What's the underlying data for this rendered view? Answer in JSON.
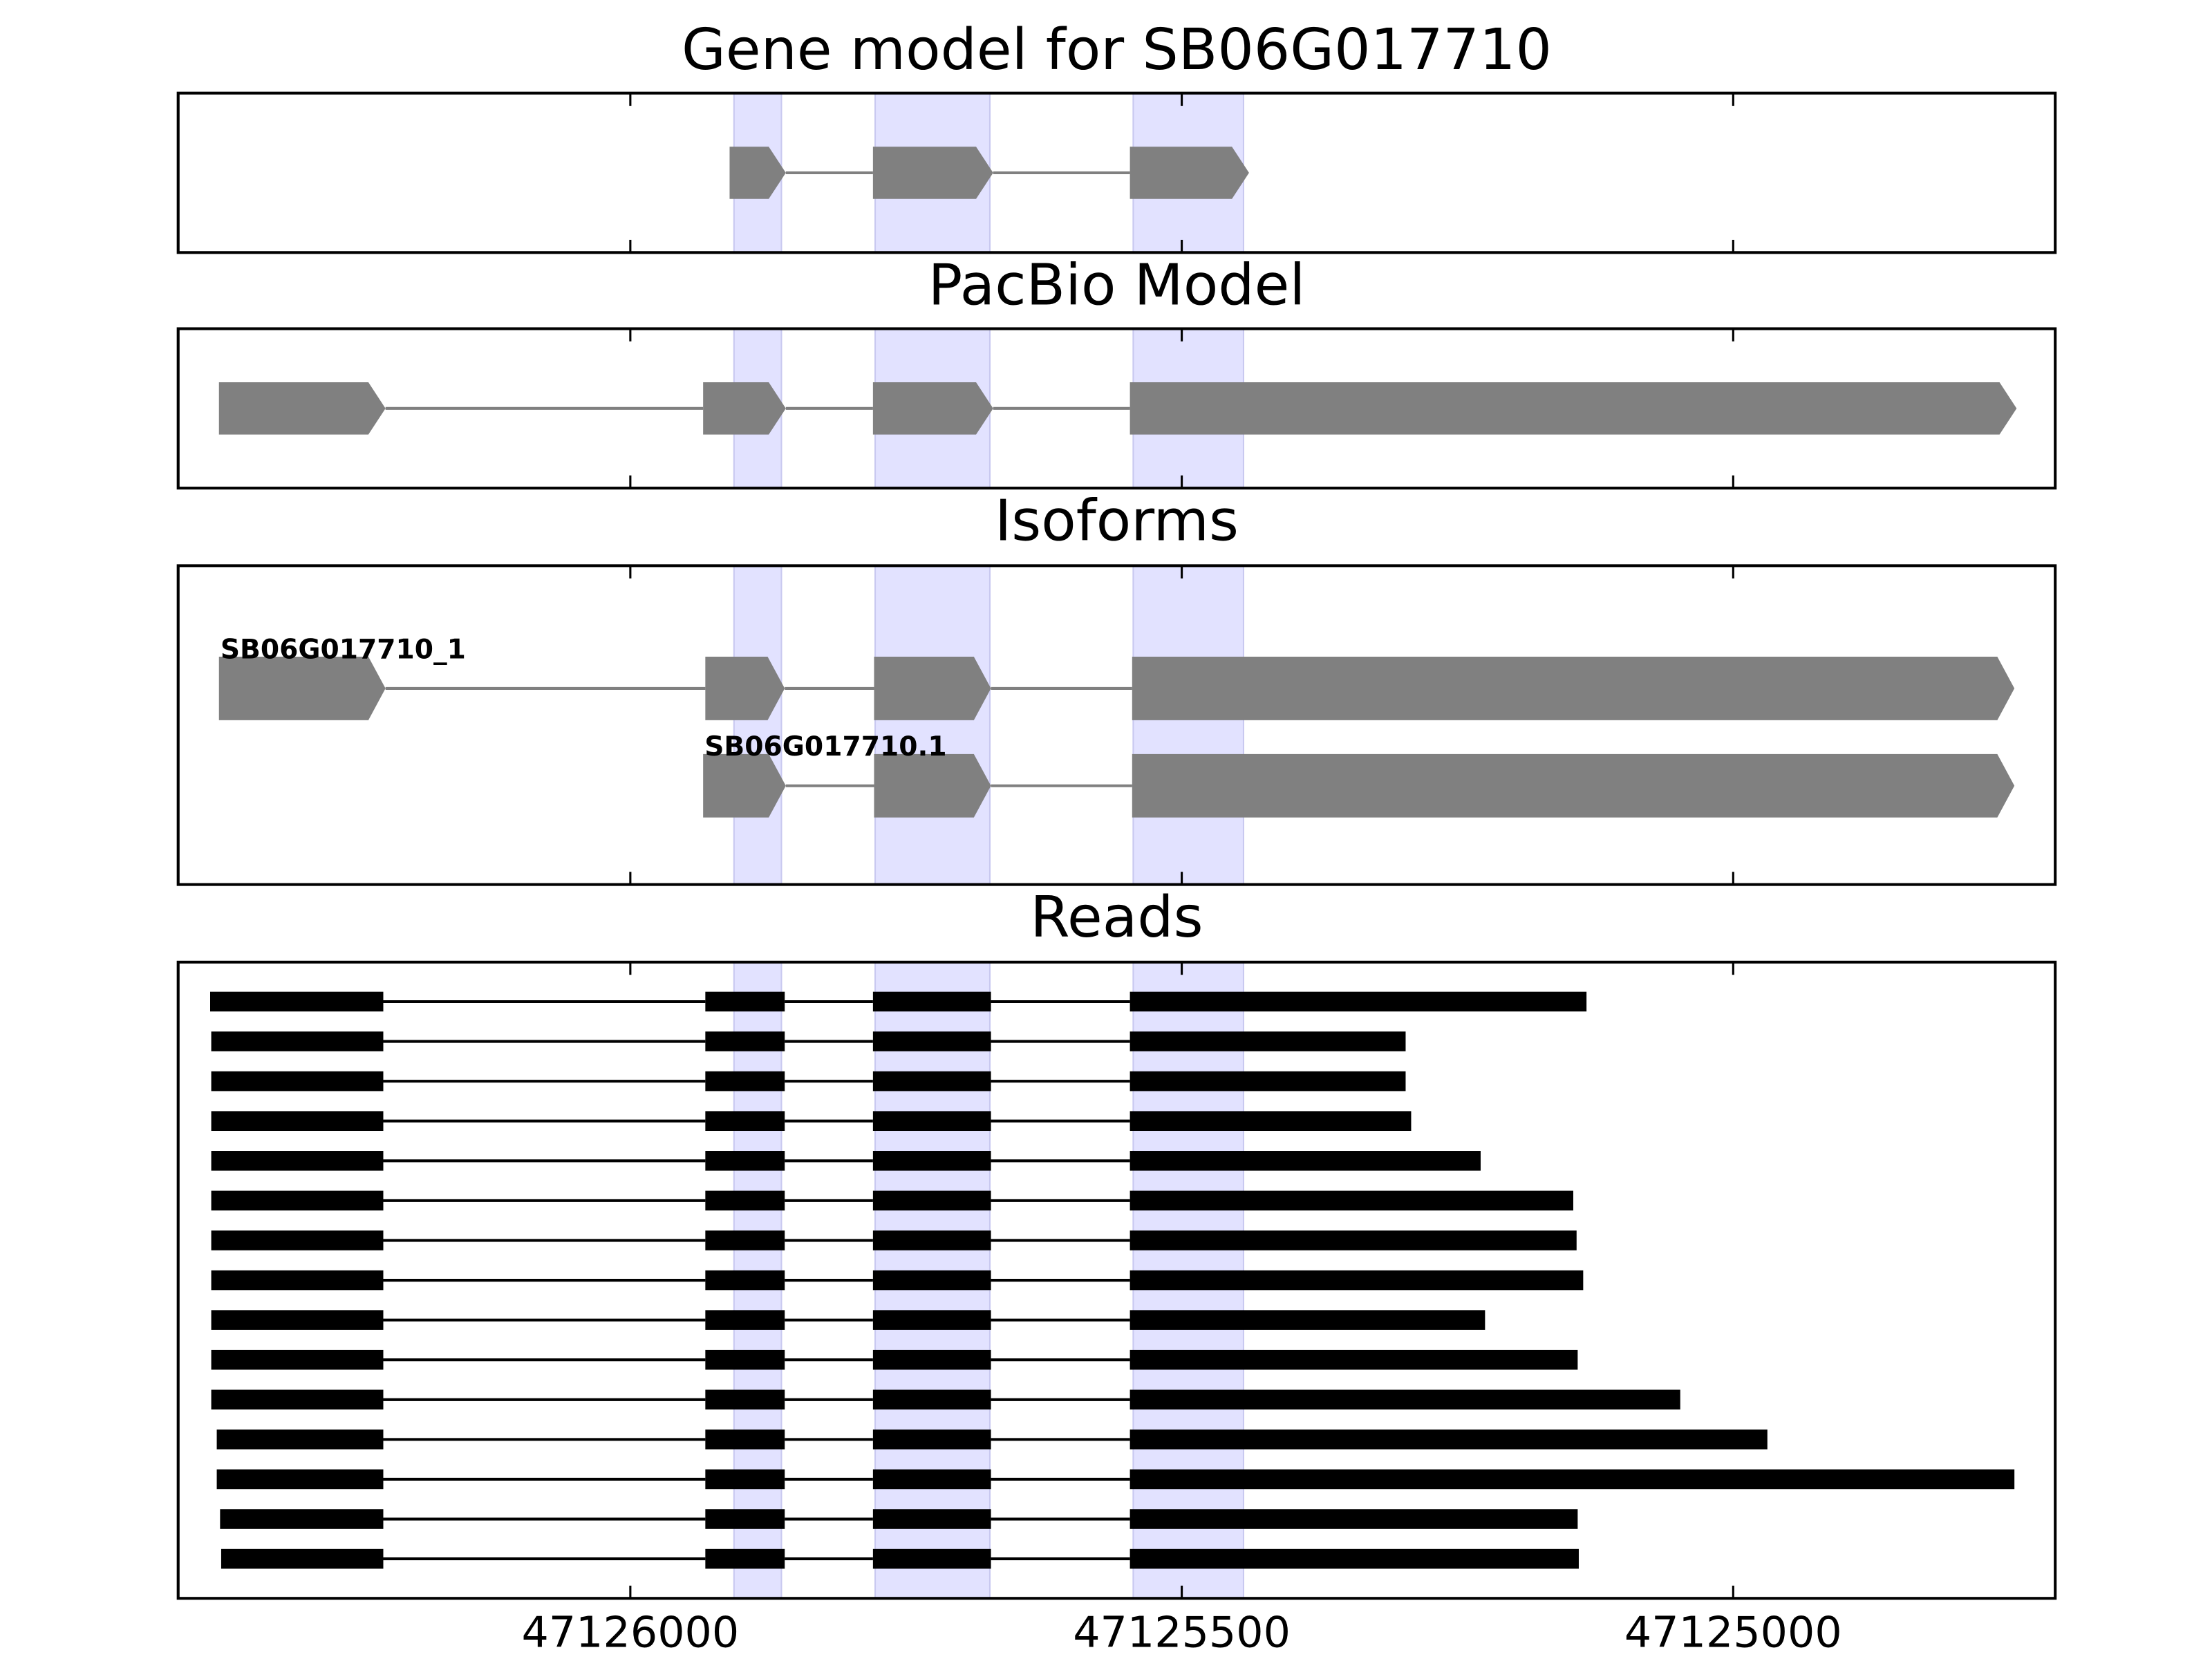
{
  "chart_data": [
    {
      "type": "gene",
      "title": "Gene model for SB06G017710",
      "xlim": [
        47126410,
        47124708
      ],
      "xticks": [
        47126000,
        47125500,
        47125000
      ],
      "highlights": [
        [
          47125906,
          47125863
        ],
        [
          47125778,
          47125674
        ],
        [
          47125544,
          47125444
        ]
      ],
      "highlight_color": "#e2e2ff",
      "color": "#808080",
      "transcripts": [
        {
          "exons": [
            [
              47125910,
              47125859
            ],
            [
              47125780,
              47125671
            ],
            [
              47125547,
              47125439
            ]
          ]
        }
      ]
    },
    {
      "type": "gene",
      "title": "PacBio Model",
      "xlim": [
        47126410,
        47124708
      ],
      "xticks": [
        47126000,
        47125500,
        47125000
      ],
      "highlights": [
        [
          47125906,
          47125863
        ],
        [
          47125778,
          47125674
        ],
        [
          47125544,
          47125444
        ]
      ],
      "highlight_color": "#e2e2ff",
      "color": "#808080",
      "transcripts": [
        {
          "exons": [
            [
              47126373,
              47126222
            ],
            [
              47125934,
              47125859
            ],
            [
              47125780,
              47125671
            ],
            [
              47125547,
              47124743
            ]
          ]
        }
      ]
    },
    {
      "type": "gene",
      "title": "Isoforms",
      "xlim": [
        47126410,
        47124708
      ],
      "xticks": [
        47126000,
        47125500,
        47125000
      ],
      "highlights": [
        [
          47125906,
          47125863
        ],
        [
          47125778,
          47125674
        ],
        [
          47125544,
          47125444
        ]
      ],
      "highlight_color": "#e2e2ff",
      "color": "#808080",
      "transcripts": [
        {
          "name": "SB06G017710_1",
          "exons": [
            [
              47126373,
              47126222
            ],
            [
              47125932,
              47125860
            ],
            [
              47125779,
              47125673
            ],
            [
              47125545,
              47124745
            ]
          ]
        },
        {
          "name": "SB06G017710.1",
          "exons": [
            [
              47125934,
              47125859
            ],
            [
              47125779,
              47125673
            ],
            [
              47125545,
              47124745
            ]
          ]
        }
      ]
    },
    {
      "type": "reads",
      "title": "Reads",
      "xlim": [
        47126410,
        47124708
      ],
      "xticks": [
        47126000,
        47125500,
        47125000
      ],
      "tick_labels": true,
      "highlights": [
        [
          47125906,
          47125863
        ],
        [
          47125778,
          47125674
        ],
        [
          47125544,
          47125444
        ]
      ],
      "highlight_color": "#e2e2ff",
      "color": "#000000",
      "transcripts": [
        {
          "exons": [
            [
              47126381,
              47126224
            ],
            [
              47125932,
              47125860
            ],
            [
              47125780,
              47125673
            ],
            [
              47125547,
              47125133
            ]
          ]
        },
        {
          "exons": [
            [
              47126380,
              47126224
            ],
            [
              47125932,
              47125860
            ],
            [
              47125780,
              47125673
            ],
            [
              47125547,
              47125297
            ]
          ]
        },
        {
          "exons": [
            [
              47126380,
              47126224
            ],
            [
              47125932,
              47125860
            ],
            [
              47125780,
              47125673
            ],
            [
              47125547,
              47125297
            ]
          ]
        },
        {
          "exons": [
            [
              47126380,
              47126224
            ],
            [
              47125932,
              47125860
            ],
            [
              47125780,
              47125673
            ],
            [
              47125547,
              47125292
            ]
          ]
        },
        {
          "exons": [
            [
              47126380,
              47126224
            ],
            [
              47125932,
              47125860
            ],
            [
              47125780,
              47125673
            ],
            [
              47125547,
              47125229
            ]
          ]
        },
        {
          "exons": [
            [
              47126380,
              47126224
            ],
            [
              47125932,
              47125860
            ],
            [
              47125780,
              47125673
            ],
            [
              47125547,
              47125145
            ]
          ]
        },
        {
          "exons": [
            [
              47126380,
              47126224
            ],
            [
              47125932,
              47125860
            ],
            [
              47125780,
              47125673
            ],
            [
              47125547,
              47125142
            ]
          ]
        },
        {
          "exons": [
            [
              47126380,
              47126224
            ],
            [
              47125932,
              47125860
            ],
            [
              47125780,
              47125673
            ],
            [
              47125547,
              47125136
            ]
          ]
        },
        {
          "exons": [
            [
              47126380,
              47126224
            ],
            [
              47125932,
              47125860
            ],
            [
              47125780,
              47125673
            ],
            [
              47125547,
              47125225
            ]
          ]
        },
        {
          "exons": [
            [
              47126380,
              47126224
            ],
            [
              47125932,
              47125860
            ],
            [
              47125780,
              47125673
            ],
            [
              47125547,
              47125141
            ]
          ]
        },
        {
          "exons": [
            [
              47126380,
              47126224
            ],
            [
              47125932,
              47125860
            ],
            [
              47125780,
              47125673
            ],
            [
              47125547,
              47125048
            ]
          ]
        },
        {
          "exons": [
            [
              47126375,
              47126224
            ],
            [
              47125932,
              47125860
            ],
            [
              47125780,
              47125673
            ],
            [
              47125547,
              47124969
            ]
          ]
        },
        {
          "exons": [
            [
              47126375,
              47126224
            ],
            [
              47125932,
              47125860
            ],
            [
              47125780,
              47125673
            ],
            [
              47125547,
              47124745
            ]
          ]
        },
        {
          "exons": [
            [
              47126372,
              47126224
            ],
            [
              47125932,
              47125860
            ],
            [
              47125780,
              47125673
            ],
            [
              47125547,
              47125141
            ]
          ]
        },
        {
          "exons": [
            [
              47126371,
              47126224
            ],
            [
              47125932,
              47125860
            ],
            [
              47125780,
              47125673
            ],
            [
              47125547,
              47125140
            ]
          ]
        }
      ]
    }
  ]
}
